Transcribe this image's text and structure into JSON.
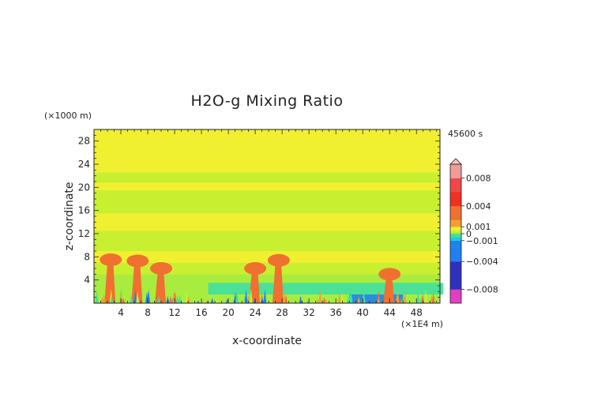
{
  "chart_data": {
    "type": "heatmap",
    "title": "H2O-g Mixing Ratio",
    "time_label": "45600 s",
    "xlabel": "x-coordinate",
    "ylabel": "z-coordinate",
    "x_unit": "(×1E4 m)",
    "y_unit": "(×1000 m)",
    "xlim": [
      0,
      51.5
    ],
    "ylim": [
      0,
      30
    ],
    "x_ticks": [
      4,
      8,
      12,
      16,
      20,
      24,
      28,
      32,
      36,
      40,
      44,
      48
    ],
    "y_ticks": [
      4,
      8,
      12,
      16,
      20,
      24,
      28
    ],
    "colorbar": {
      "range": [
        -0.01,
        0.01
      ],
      "tick_values": [
        0.008,
        0.004,
        0.001,
        0,
        -0.001,
        -0.004,
        -0.008
      ],
      "tick_labels": [
        "0.008",
        "0.004",
        "0.001",
        "0",
        "−0.001",
        "−0.004",
        "−0.008"
      ]
    },
    "field": {
      "background_value": 0.0005,
      "bands": [
        {
          "z": [
            0,
            2
          ],
          "value": 0.0001
        },
        {
          "z": [
            2,
            5
          ],
          "value": 0.0002
        },
        {
          "z": [
            5,
            7
          ],
          "value": 0.0003
        },
        {
          "z": [
            7,
            9
          ],
          "value": 0.0006
        },
        {
          "z": [
            9,
            12.5
          ],
          "value": 0.0003
        },
        {
          "z": [
            12.5,
            15.5
          ],
          "value": 0.0006
        },
        {
          "z": [
            15.5,
            19.5
          ],
          "value": 0.0003
        },
        {
          "z": [
            19.5,
            20.8
          ],
          "value": 0.0006
        },
        {
          "z": [
            20.8,
            22.6
          ],
          "value": 0.0003
        },
        {
          "z": [
            22.6,
            30
          ],
          "value": 0.0006
        }
      ],
      "moist_plumes": [
        {
          "x": 2.5,
          "z": 7.5,
          "value": 0.0025
        },
        {
          "x": 6.5,
          "z": 7.3,
          "value": 0.0025
        },
        {
          "x": 10.0,
          "z": 6.0,
          "value": 0.0025
        },
        {
          "x": 24.0,
          "z": 6.0,
          "value": 0.0025
        },
        {
          "x": 27.5,
          "z": 7.4,
          "value": 0.0025
        },
        {
          "x": 44.0,
          "z": 5.0,
          "value": 0.0025
        }
      ],
      "dry_patches": [
        {
          "x": [
            17,
            52
          ],
          "z": [
            1.5,
            3.5
          ],
          "value": -0.0004
        },
        {
          "x": [
            38,
            46
          ],
          "z": [
            0,
            1.5
          ],
          "value": -0.0012
        }
      ]
    }
  }
}
